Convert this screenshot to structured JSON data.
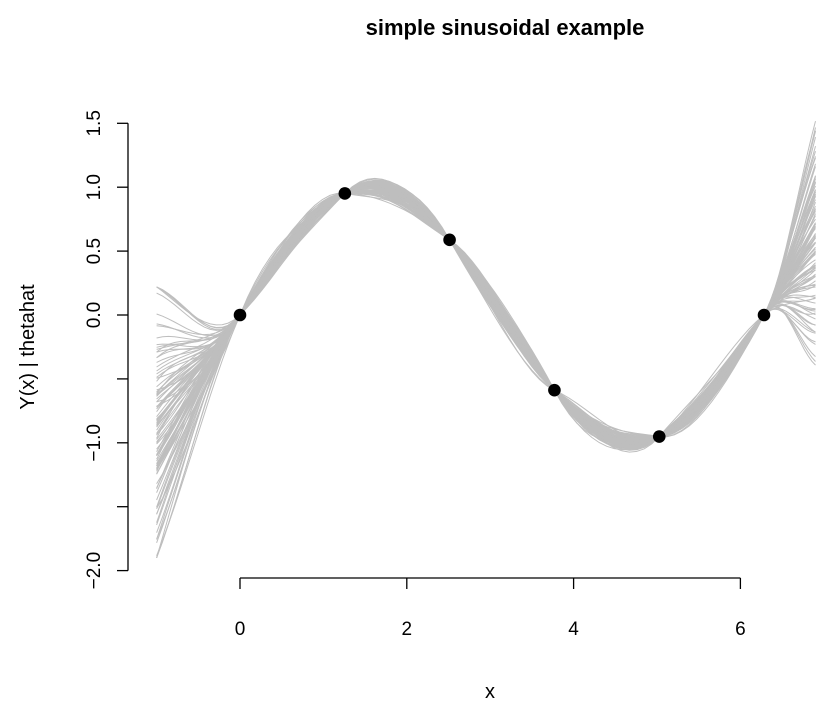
{
  "chart_data": {
    "type": "line",
    "title": "simple sinusoidal example",
    "xlabel": "x",
    "ylabel": "Y(x) | thetahat",
    "xlim": [
      -1,
      6.9
    ],
    "ylim": [
      -2.0,
      1.5
    ],
    "x_ticks": [
      0,
      2,
      4,
      6
    ],
    "x_tick_labels": [
      "0",
      "2",
      "4",
      "6"
    ],
    "y_ticks": [
      -2.0,
      -1.5,
      -1.0,
      -0.5,
      0.0,
      0.5,
      1.0,
      1.5
    ],
    "y_tick_labels": [
      "−2.0",
      "",
      "−1.0",
      "",
      "0.0",
      "0.5",
      "1.0",
      "1.5"
    ],
    "grid": false,
    "legend": "none",
    "observed_points": {
      "x": [
        0,
        1.257,
        2.513,
        3.77,
        5.027,
        6.283
      ],
      "y": [
        0,
        0.951,
        0.588,
        -0.588,
        -0.951,
        0
      ]
    },
    "posterior_samples": {
      "count": 100,
      "color": "#bebebe",
      "left_edge_y_range": [
        -1.9,
        0.22
      ],
      "right_edge_y_range": [
        -0.6,
        1.55
      ]
    },
    "colors": {
      "samples": "#bebebe",
      "points": "#000000",
      "axes": "#000000"
    }
  }
}
